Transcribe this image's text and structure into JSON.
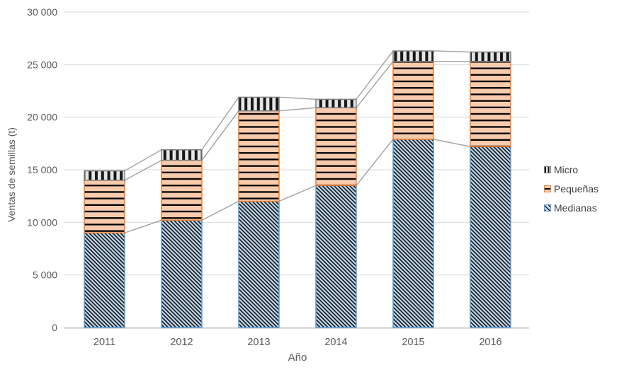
{
  "axes": {
    "y_title": "Ventas de semillas (t)",
    "x_title": "Año"
  },
  "legend": {
    "items": [
      {
        "label": "Micro"
      },
      {
        "label": "Pequeñas"
      },
      {
        "label": "Medianas"
      }
    ]
  },
  "chart_data": {
    "type": "bar",
    "stacked": true,
    "title": "",
    "xlabel": "Año",
    "ylabel": "Ventas de semillas (t)",
    "categories": [
      "2011",
      "2012",
      "2013",
      "2014",
      "2015",
      "2016"
    ],
    "series": [
      {
        "name": "Medianas",
        "values": [
          9000,
          10200,
          12000,
          13500,
          17900,
          17200
        ],
        "fill": "#bdd7ee",
        "border": "#5b9bd5",
        "pattern": "diagonal-stripe",
        "pattern_color": "#1f1f1f"
      },
      {
        "name": "Pequeñas",
        "values": [
          5000,
          5700,
          8600,
          7400,
          7400,
          8100
        ],
        "fill": "#f8cbad",
        "border": "#ed7d31",
        "pattern": "horizontal-stripe",
        "pattern_color": "#000000"
      },
      {
        "name": "Micro",
        "values": [
          900,
          1000,
          1300,
          800,
          1000,
          900
        ],
        "fill": "#e7e6e6",
        "border": "#808080",
        "pattern": "vertical-stripe",
        "pattern_color": "#161616"
      }
    ],
    "totals": [
      14900,
      16900,
      21900,
      21700,
      26300,
      26200
    ],
    "ylim": [
      0,
      30000
    ],
    "ytick_step": 5000,
    "ytick_labels": [
      "0",
      "5 000",
      "10 000",
      "15 000",
      "20 000",
      "25 000",
      "30 000"
    ],
    "grid": true,
    "legend_position": "right",
    "legend_order": [
      "Micro",
      "Pequeñas",
      "Medianas"
    ],
    "colors": {
      "gridline": "#d9d9d9",
      "axis_line": "#bfbfbf",
      "series_lines": "#a6a6a6",
      "tick_text": "#595959",
      "legend_text": "#404040",
      "background": "#ffffff"
    }
  }
}
